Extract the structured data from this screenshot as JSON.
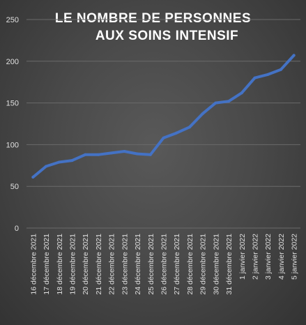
{
  "chart_data": {
    "type": "line",
    "title_lines": [
      "LE NOMBRE DE PERSONNES",
      "AUX SOINS INTENSIF"
    ],
    "xlabel": "",
    "ylabel": "",
    "ylim": [
      0,
      250
    ],
    "yticks": [
      0,
      50,
      100,
      150,
      200,
      250
    ],
    "grid": true,
    "legend": "none",
    "colors": {
      "line": "#4472c4",
      "grid": "#6a6a6a",
      "text": "#e0e0e0"
    },
    "categories": [
      "16 décembre 2021",
      "17 décembre 2021",
      "18 décembre 2021",
      "19 décembre 2021",
      "20 décembre 2021",
      "21 décembre 2021",
      "22 décembre 2021",
      "23 décembre 2021",
      "24 décembre 2021",
      "25 décembre 2021",
      "26 décembre 2021",
      "27 décembre 2021",
      "28 décembre 2021",
      "29 décembre 2021",
      "30 décembre 2021",
      "31 décembre 2021",
      "1 janvier 2022",
      "2 janvier 2022",
      "3 janvier 2022",
      "4 janvier 2022",
      "5 janvier 2022"
    ],
    "series": [
      {
        "values": [
          61,
          74,
          79,
          81,
          88,
          88,
          90,
          92,
          89,
          88,
          108,
          114,
          121,
          137,
          150,
          152,
          162,
          180,
          184,
          190,
          207
        ]
      }
    ]
  }
}
